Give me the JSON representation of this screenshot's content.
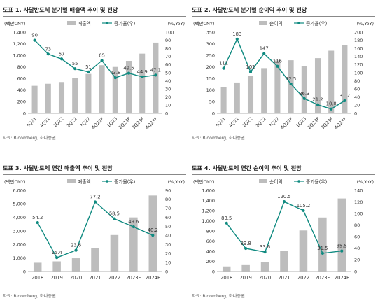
{
  "colors": {
    "bar": "#bdbdbd",
    "line": "#0f8a80",
    "text": "#333333"
  },
  "charts": [
    {
      "title": "도표 1. 사달반도체 분기별 매출액 추이 및 전망",
      "source": "자료: Bloomberg, 하나증권",
      "left_unit": "(백만CNY)",
      "right_unit": "(%,YoY)",
      "legend_bar": "매출액",
      "legend_line": "증가율(우)"
    },
    {
      "title": "도표 2. 사달반도체 분기별 순이익 추이 및 전망",
      "source": "자료: Bloomberg, 하나증권",
      "left_unit": "(백만CNY)",
      "right_unit": "(%,YoY)",
      "legend_bar": "순이익",
      "legend_line": "증가율(우)"
    },
    {
      "title": "도표 3. 사달반도체 연간 매출액 추이 및 전망",
      "source": "자료: Bloomberg, 하나증권",
      "left_unit": "(백만CNY)",
      "right_unit": "(%,YoY)",
      "legend_bar": "매출액",
      "legend_line": "증가율(우)"
    },
    {
      "title": "도표 4. 사달반도체 연간 순이익 추이 및 전망",
      "source": "자료: Bloomberg, 하나증권",
      "left_unit": "(백만CNY)",
      "right_unit": "(%,YoY)",
      "legend_bar": "순이익",
      "legend_line": "증가율(우)"
    }
  ],
  "chart_data": [
    {
      "type": "bar",
      "categories": [
        "3Q21",
        "4Q21",
        "1Q22",
        "2Q22",
        "3Q22",
        "4Q22F",
        "1Q23",
        "2Q23F",
        "3Q23F",
        "4Q23F"
      ],
      "series": [
        {
          "name": "매출액",
          "axis": "left",
          "values": [
            475,
            510,
            540,
            610,
            680,
            830,
            800,
            905,
            1030,
            1220
          ]
        },
        {
          "name": "증가율(우)",
          "axis": "right",
          "type": "line",
          "values": [
            90,
            73,
            67,
            55,
            51,
            65,
            43.8,
            49.5,
            44.9,
            47.1
          ],
          "labels": [
            "90",
            "73",
            "67",
            "55",
            "51",
            "65",
            "43.8",
            "49.5",
            "44.9",
            "47.1"
          ]
        }
      ],
      "ylim_left": [
        0,
        1400
      ],
      "ylim_right": [
        0,
        100
      ],
      "yticks_left": [
        "0",
        "200",
        "400",
        "600",
        "800",
        "1,000",
        "1,200",
        "1,400"
      ],
      "yticks_right": [
        "0",
        "10",
        "20",
        "30",
        "40",
        "50",
        "60",
        "70",
        "80",
        "90",
        "100"
      ]
    },
    {
      "type": "bar",
      "categories": [
        "3Q21",
        "4Q21",
        "1Q22",
        "2Q22",
        "3Q22",
        "4Q22F",
        "1Q23",
        "2Q23F",
        "3Q23F",
        "4Q23F"
      ],
      "series": [
        {
          "name": "순이익",
          "axis": "left",
          "values": [
            112,
            133,
            162,
            195,
            228,
            229,
            205,
            238,
            270,
            295
          ]
        },
        {
          "name": "증가율(우)",
          "axis": "right",
          "type": "line",
          "values": [
            111,
            183,
            102,
            147,
            116,
            72.5,
            36.3,
            21.2,
            10.8,
            31.2
          ],
          "labels": [
            "111",
            "183",
            "102",
            "147",
            "116",
            "72.5",
            "36.3",
            "21.2",
            "10.8",
            "31.2"
          ]
        }
      ],
      "ylim_left": [
        0,
        350
      ],
      "ylim_right": [
        0,
        200
      ],
      "yticks_left": [
        "0",
        "50",
        "100",
        "150",
        "200",
        "250",
        "300",
        "350"
      ],
      "yticks_right": [
        "0",
        "20",
        "40",
        "60",
        "80",
        "100",
        "120",
        "140",
        "160",
        "180",
        "200"
      ]
    },
    {
      "type": "bar",
      "categories": [
        "2018",
        "2019",
        "2020",
        "2021",
        "2022",
        "2023F",
        "2024F"
      ],
      "series": [
        {
          "name": "매출액",
          "axis": "left",
          "values": [
            650,
            750,
            980,
            1720,
            2700,
            4000,
            5620
          ]
        },
        {
          "name": "증가율(우)",
          "axis": "right",
          "type": "line",
          "values": [
            54.2,
            15.4,
            23.6,
            77.2,
            58.5,
            49.6,
            40.2
          ],
          "labels": [
            "54.2",
            "15.4",
            "23.6",
            "77.2",
            "58.5",
            "49.6",
            "40.2"
          ]
        }
      ],
      "ylim_left": [
        0,
        6000
      ],
      "ylim_right": [
        0,
        90
      ],
      "yticks_left": [
        "0",
        "1,000",
        "2,000",
        "3,000",
        "4,000",
        "5,000",
        "6,000"
      ],
      "yticks_right": [
        "0",
        "10",
        "20",
        "30",
        "40",
        "50",
        "60",
        "70",
        "80",
        "90"
      ]
    },
    {
      "type": "bar",
      "categories": [
        "2018",
        "2019",
        "2020",
        "2021",
        "2022",
        "2023F",
        "2024F"
      ],
      "series": [
        {
          "name": "순이익",
          "axis": "left",
          "values": [
            100,
            140,
            185,
            400,
            810,
            1065,
            1440
          ]
        },
        {
          "name": "증가율(우)",
          "axis": "right",
          "type": "line",
          "values": [
            83.5,
            39.8,
            33.6,
            120.5,
            105.2,
            31.5,
            35.5
          ],
          "labels": [
            "83.5",
            "39.8",
            "33.6",
            "120.5",
            "105.2",
            "31.5",
            "35.5"
          ]
        }
      ],
      "ylim_left": [
        0,
        1600
      ],
      "ylim_right": [
        0,
        140
      ],
      "yticks_left": [
        "0",
        "200",
        "400",
        "600",
        "800",
        "1,000",
        "1,200",
        "1,400",
        "1,600"
      ],
      "yticks_right": [
        "0",
        "20",
        "40",
        "60",
        "80",
        "100",
        "120",
        "140"
      ]
    }
  ]
}
